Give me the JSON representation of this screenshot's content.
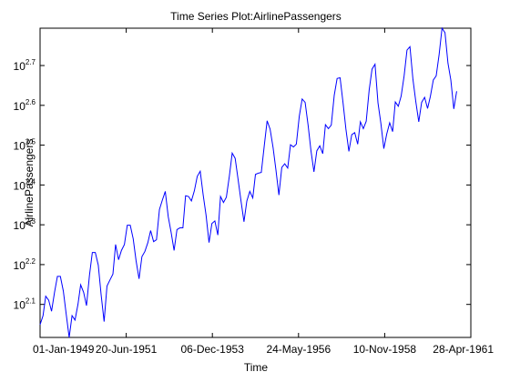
{
  "chart_data": {
    "type": "line",
    "title": "Time Series Plot:AirlinePassengers",
    "xlabel": "Time",
    "ylabel": "AirlinePassengers",
    "yscale": "log",
    "ylim": [
      104,
      622
    ],
    "y_ticks": [
      {
        "base": "10",
        "exp": "2.1",
        "value": 125.89
      },
      {
        "base": "10",
        "exp": "2.2",
        "value": 158.49
      },
      {
        "base": "10",
        "exp": "2.3",
        "value": 199.53
      },
      {
        "base": "10",
        "exp": "2.4",
        "value": 251.19
      },
      {
        "base": "10",
        "exp": "2.5",
        "value": 316.23
      },
      {
        "base": "10",
        "exp": "2.6",
        "value": 398.11
      },
      {
        "base": "10",
        "exp": "2.7",
        "value": 501.19
      }
    ],
    "x_start": "01-Jan-1949",
    "x_end": "28-Apr-1961",
    "x_ticks": [
      "01-Jan-1949",
      "20-Jun-1951",
      "06-Dec-1953",
      "24-May-1956",
      "10-Nov-1958",
      "28-Apr-1961"
    ],
    "series": [
      {
        "name": "",
        "color": "#0000ff",
        "start": "1949-01",
        "frequency": "monthly",
        "values": [
          112,
          118,
          132,
          129,
          121,
          135,
          148,
          148,
          136,
          119,
          104,
          118,
          115,
          126,
          141,
          135,
          125,
          149,
          170,
          170,
          158,
          133,
          114,
          140,
          145,
          150,
          178,
          163,
          172,
          178,
          199,
          199,
          184,
          162,
          146,
          166,
          171,
          180,
          193,
          181,
          183,
          218,
          230,
          242,
          209,
          191,
          172,
          194,
          196,
          196,
          236,
          235,
          229,
          243,
          264,
          272,
          237,
          211,
          180,
          201,
          204,
          188,
          235,
          227,
          234,
          264,
          302,
          293,
          259,
          229,
          203,
          229,
          242,
          233,
          267,
          269,
          270,
          315,
          364,
          347,
          312,
          274,
          237,
          278,
          284,
          277,
          317,
          313,
          318,
          374,
          413,
          405,
          355,
          306,
          271,
          306,
          315,
          301,
          356,
          348,
          355,
          422,
          465,
          467,
          404,
          347,
          305,
          336,
          340,
          318,
          362,
          348,
          363,
          435,
          491,
          505,
          404,
          359,
          310,
          337,
          360,
          342,
          406,
          396,
          420,
          472,
          548,
          559,
          463,
          407,
          362,
          405,
          417,
          391,
          419,
          461,
          472,
          535,
          622,
          606,
          508,
          461,
          390,
          432
        ]
      }
    ],
    "grid": false,
    "legend": "none"
  }
}
